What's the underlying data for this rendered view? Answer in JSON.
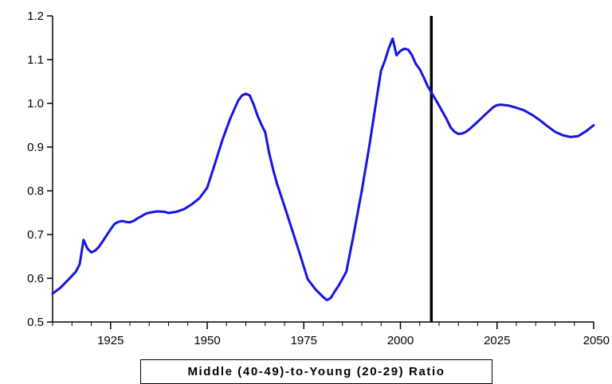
{
  "chart_data": {
    "type": "line",
    "title": "",
    "xlabel": "",
    "ylabel": "",
    "xlim": [
      1910,
      2050
    ],
    "ylim": [
      0.5,
      1.2
    ],
    "x_ticks": [
      1925,
      1950,
      1975,
      2000,
      2025,
      2050
    ],
    "x_tick_labels": [
      "1925",
      "1950",
      "1975",
      "2000",
      "2025",
      "2050"
    ],
    "y_ticks": [
      0.5,
      0.6,
      0.7,
      0.8,
      0.9,
      1.0,
      1.1,
      1.2
    ],
    "y_tick_labels": [
      "0.5",
      "0.6",
      "0.7",
      "0.8",
      "0.9",
      "1.0",
      "1.1",
      "1.2"
    ],
    "grid": false,
    "vertical_marker_x": 2008,
    "legend": {
      "position": "bottom-center",
      "label": "Middle (40-49)-to-Young (20-29) Ratio"
    },
    "series": [
      {
        "name": "Middle (40-49)-to-Young (20-29) Ratio",
        "color": "#1414e0",
        "x": [
          1910,
          1912,
          1914,
          1916,
          1917,
          1918,
          1919,
          1920,
          1921,
          1922,
          1923,
          1925,
          1926,
          1927,
          1928,
          1929,
          1930,
          1931,
          1932,
          1933,
          1934,
          1935,
          1937,
          1939,
          1940,
          1942,
          1944,
          1946,
          1948,
          1950,
          1952,
          1954,
          1956,
          1958,
          1959,
          1960,
          1961,
          1962,
          1963,
          1964,
          1965,
          1966,
          1967,
          1968,
          1970,
          1972,
          1974,
          1976,
          1978,
          1980,
          1981,
          1982,
          1983,
          1984,
          1986,
          1988,
          1990,
          1992,
          1994,
          1995,
          1996,
          1997,
          1998,
          1999,
          2000,
          2001,
          2002,
          2003,
          2004,
          2005,
          2006,
          2007,
          2008,
          2009,
          2010,
          2012,
          2013,
          2014,
          2015,
          2016,
          2017,
          2018,
          2020,
          2022,
          2024,
          2025,
          2026,
          2027,
          2028,
          2030,
          2032,
          2034,
          2036,
          2038,
          2040,
          2042,
          2044,
          2046,
          2048,
          2050
        ],
        "values": [
          0.565,
          0.578,
          0.596,
          0.615,
          0.632,
          0.688,
          0.668,
          0.659,
          0.663,
          0.672,
          0.685,
          0.712,
          0.724,
          0.729,
          0.731,
          0.729,
          0.728,
          0.731,
          0.737,
          0.742,
          0.747,
          0.75,
          0.753,
          0.752,
          0.749,
          0.752,
          0.758,
          0.769,
          0.783,
          0.807,
          0.862,
          0.918,
          0.966,
          1.006,
          1.018,
          1.022,
          1.018,
          0.998,
          0.972,
          0.952,
          0.934,
          0.888,
          0.851,
          0.818,
          0.765,
          0.71,
          0.655,
          0.598,
          0.575,
          0.557,
          0.55,
          0.555,
          0.57,
          0.583,
          0.615,
          0.705,
          0.8,
          0.905,
          1.02,
          1.075,
          1.098,
          1.126,
          1.148,
          1.11,
          1.12,
          1.125,
          1.123,
          1.11,
          1.09,
          1.078,
          1.06,
          1.04,
          1.025,
          1.01,
          0.995,
          0.963,
          0.945,
          0.935,
          0.93,
          0.931,
          0.935,
          0.942,
          0.958,
          0.975,
          0.991,
          0.996,
          0.997,
          0.996,
          0.995,
          0.99,
          0.984,
          0.974,
          0.962,
          0.948,
          0.935,
          0.927,
          0.923,
          0.925,
          0.936,
          0.95
        ]
      }
    ]
  }
}
